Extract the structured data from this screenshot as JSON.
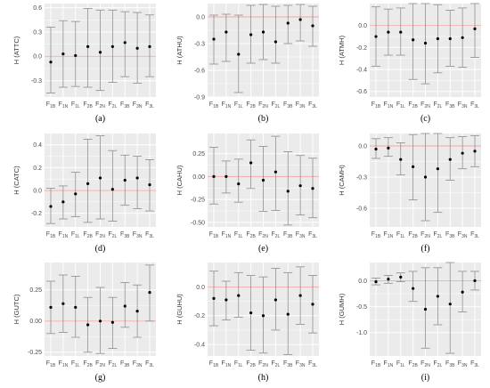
{
  "colors": {
    "panel_bg": "#ebebeb",
    "grid": "#ffffff",
    "zero_line": "#f4a6a6",
    "error_bar": "#8c8c8c",
    "point": "#000000"
  },
  "chart_data": [
    {
      "id": "a",
      "type": "scatter",
      "panel_label": "(a)",
      "ylabel": "H (ATTC)",
      "categories": [
        "F1B",
        "F1N",
        "F1L",
        "F2B",
        "F2N",
        "F2L",
        "F3B",
        "F3N",
        "F3L"
      ],
      "yticks": [
        "-0.3",
        "0.0",
        "0.3",
        "0.6"
      ],
      "ytick_values": [
        -0.3,
        0,
        0.3,
        0.6
      ],
      "ylim": [
        -0.5,
        0.65
      ],
      "values": [
        -0.07,
        0.03,
        0.01,
        0.12,
        0.05,
        0.12,
        0.17,
        0.1,
        0.12
      ],
      "err_low": [
        -0.45,
        -0.38,
        -0.37,
        -0.38,
        -0.42,
        -0.32,
        -0.25,
        -0.33,
        -0.25
      ],
      "err_high": [
        0.36,
        0.44,
        0.43,
        0.59,
        0.57,
        0.57,
        0.55,
        0.54,
        0.51
      ]
    },
    {
      "id": "b",
      "type": "scatter",
      "panel_label": "(b)",
      "ylabel": "H (ATHU)",
      "categories": [
        "F1B",
        "F1N",
        "F1L",
        "F2B",
        "F2N",
        "F2L",
        "F3B",
        "F3N",
        "F3L"
      ],
      "yticks": [
        "-0.9",
        "-0.6",
        "-0.3",
        "0.0"
      ],
      "ytick_values": [
        -0.9,
        -0.6,
        -0.3,
        0
      ],
      "ylim": [
        -0.9,
        0.15
      ],
      "values": [
        -0.25,
        -0.17,
        -0.42,
        -0.2,
        -0.17,
        -0.28,
        -0.07,
        -0.03,
        -0.1
      ],
      "err_low": [
        -0.53,
        -0.5,
        -0.85,
        -0.52,
        -0.48,
        -0.52,
        -0.3,
        -0.27,
        -0.33
      ],
      "err_high": [
        0.02,
        0.03,
        0.02,
        0.13,
        0.14,
        0.12,
        0.13,
        0.14,
        0.12
      ]
    },
    {
      "id": "c",
      "type": "scatter",
      "panel_label": "(c)",
      "ylabel": "H (ATMH)",
      "categories": [
        "F1B",
        "F1N",
        "F1L",
        "F2B",
        "F2N",
        "F2L",
        "F3B",
        "F3N",
        "F3L"
      ],
      "yticks": [
        "-0.6",
        "-0.4",
        "-0.2",
        "0.0"
      ],
      "ytick_values": [
        -0.6,
        -0.4,
        -0.2,
        0
      ],
      "ylim": [
        -0.65,
        0.2
      ],
      "values": [
        -0.1,
        -0.06,
        -0.06,
        -0.13,
        -0.16,
        -0.12,
        -0.12,
        -0.11,
        -0.03
      ],
      "err_low": [
        -0.37,
        -0.27,
        -0.27,
        -0.49,
        -0.53,
        -0.43,
        -0.37,
        -0.38,
        -0.29
      ],
      "err_high": [
        0.17,
        0.15,
        0.16,
        0.22,
        0.2,
        0.19,
        0.14,
        0.16,
        0.2
      ]
    },
    {
      "id": "d",
      "type": "scatter",
      "panel_label": "(d)",
      "ylabel": "H (CATC)",
      "categories": [
        "F1B",
        "F1N",
        "F1L",
        "F2B",
        "F2N",
        "F2L",
        "F3B",
        "F3N",
        "F3L"
      ],
      "yticks": [
        "-0.2",
        "0.0",
        "0.2",
        "0.4"
      ],
      "ytick_values": [
        -0.2,
        0,
        0.2,
        0.4
      ],
      "ylim": [
        -0.32,
        0.5
      ],
      "values": [
        -0.14,
        -0.1,
        -0.03,
        0.06,
        0.11,
        0.01,
        0.09,
        0.11,
        0.05
      ],
      "err_low": [
        -0.29,
        -0.25,
        -0.23,
        -0.28,
        -0.25,
        -0.27,
        -0.13,
        -0.16,
        -0.18
      ],
      "err_high": [
        0.02,
        0.04,
        0.16,
        0.45,
        0.48,
        0.35,
        0.31,
        0.3,
        0.27
      ]
    },
    {
      "id": "e",
      "type": "scatter",
      "panel_label": "(e)",
      "ylabel": "H (CAHU)",
      "categories": [
        "F1B",
        "F1N",
        "F1L",
        "F2B",
        "F2N",
        "F2L",
        "F3B",
        "F3N",
        "F3L"
      ],
      "yticks": [
        "-0.50",
        "-0.25",
        "0.00",
        "0.25"
      ],
      "ytick_values": [
        -0.5,
        -0.25,
        0,
        0.25
      ],
      "ylim": [
        -0.55,
        0.47
      ],
      "values": [
        0.0,
        0.0,
        -0.08,
        0.15,
        -0.04,
        0.05,
        -0.16,
        -0.1,
        -0.13
      ],
      "err_low": [
        -0.3,
        -0.18,
        -0.28,
        -0.13,
        -0.38,
        -0.37,
        -0.53,
        -0.42,
        -0.45
      ],
      "err_high": [
        0.32,
        0.17,
        0.19,
        0.4,
        0.33,
        0.44,
        0.27,
        0.23,
        0.2
      ]
    },
    {
      "id": "f",
      "type": "scatter",
      "panel_label": "(f)",
      "ylabel": "H (CAMH)",
      "categories": [
        "F1B",
        "F1N",
        "F1L",
        "F2B",
        "F2N",
        "F2L",
        "F3B",
        "F3N",
        "F3L"
      ],
      "yticks": [
        "-0.6",
        "-0.3",
        "0.0"
      ],
      "ytick_values": [
        -0.6,
        -0.3,
        0
      ],
      "ylim": [
        -0.78,
        0.12
      ],
      "values": [
        -0.03,
        -0.02,
        -0.13,
        -0.2,
        -0.3,
        -0.22,
        -0.13,
        -0.07,
        -0.05
      ],
      "err_low": [
        -0.12,
        -0.1,
        -0.28,
        -0.52,
        -0.72,
        -0.64,
        -0.33,
        -0.22,
        -0.2
      ],
      "err_high": [
        0.07,
        0.08,
        0.03,
        0.11,
        0.15,
        0.18,
        0.08,
        0.09,
        0.1
      ]
    },
    {
      "id": "g",
      "type": "scatter",
      "panel_label": "(g)",
      "ylabel": "H (GUTC)",
      "categories": [
        "F1B",
        "F1N",
        "F1L",
        "F2B",
        "F2N",
        "F2L",
        "F3B",
        "F3N",
        "F3L"
      ],
      "yticks": [
        "-0.25",
        "0.00",
        "0.25"
      ],
      "ytick_values": [
        -0.25,
        0,
        0.25
      ],
      "ylim": [
        -0.28,
        0.47
      ],
      "values": [
        0.11,
        0.14,
        0.11,
        -0.03,
        0.0,
        -0.01,
        0.12,
        0.08,
        0.23
      ],
      "err_low": [
        -0.1,
        -0.09,
        -0.13,
        -0.25,
        -0.26,
        -0.22,
        -0.05,
        -0.13,
        0.0
      ],
      "err_high": [
        0.32,
        0.37,
        0.36,
        0.19,
        0.27,
        0.19,
        0.31,
        0.29,
        0.45
      ]
    },
    {
      "id": "h",
      "type": "scatter",
      "panel_label": "(h)",
      "ylabel": "H (GUHU)",
      "categories": [
        "F1B",
        "F1N",
        "F1L",
        "F2B",
        "F2N",
        "F2L",
        "F3B",
        "F3N",
        "F3L"
      ],
      "yticks": [
        "-0.4",
        "-0.2",
        "0.0"
      ],
      "ytick_values": [
        -0.4,
        -0.2,
        0
      ],
      "ylim": [
        -0.48,
        0.17
      ],
      "values": [
        -0.08,
        -0.09,
        -0.06,
        -0.18,
        -0.2,
        -0.09,
        -0.19,
        -0.06,
        -0.12
      ],
      "err_low": [
        -0.27,
        -0.23,
        -0.21,
        -0.44,
        -0.46,
        -0.3,
        -0.47,
        -0.26,
        -0.32
      ],
      "err_high": [
        0.11,
        0.04,
        0.1,
        0.08,
        0.07,
        0.13,
        0.1,
        0.14,
        0.08
      ]
    },
    {
      "id": "i",
      "type": "scatter",
      "panel_label": "(i)",
      "ylabel": "H (GUMH)",
      "categories": [
        "F1B",
        "F1N",
        "F1L",
        "F2B",
        "F2N",
        "F2L",
        "F3B",
        "F3N",
        "F3L"
      ],
      "yticks": [
        "-1.0",
        "-0.5",
        "0.0"
      ],
      "ytick_values": [
        -1,
        -0.5,
        0
      ],
      "ylim": [
        -1.45,
        0.35
      ],
      "values": [
        -0.02,
        0.03,
        0.07,
        -0.15,
        -0.55,
        -0.3,
        -0.45,
        -0.22,
        0.0
      ],
      "err_low": [
        -0.08,
        -0.05,
        -0.02,
        -0.4,
        -1.3,
        -0.85,
        -1.4,
        -0.6,
        -0.18
      ],
      "err_high": [
        0.05,
        0.1,
        0.15,
        0.18,
        0.25,
        0.25,
        0.5,
        0.18,
        0.18
      ]
    }
  ]
}
